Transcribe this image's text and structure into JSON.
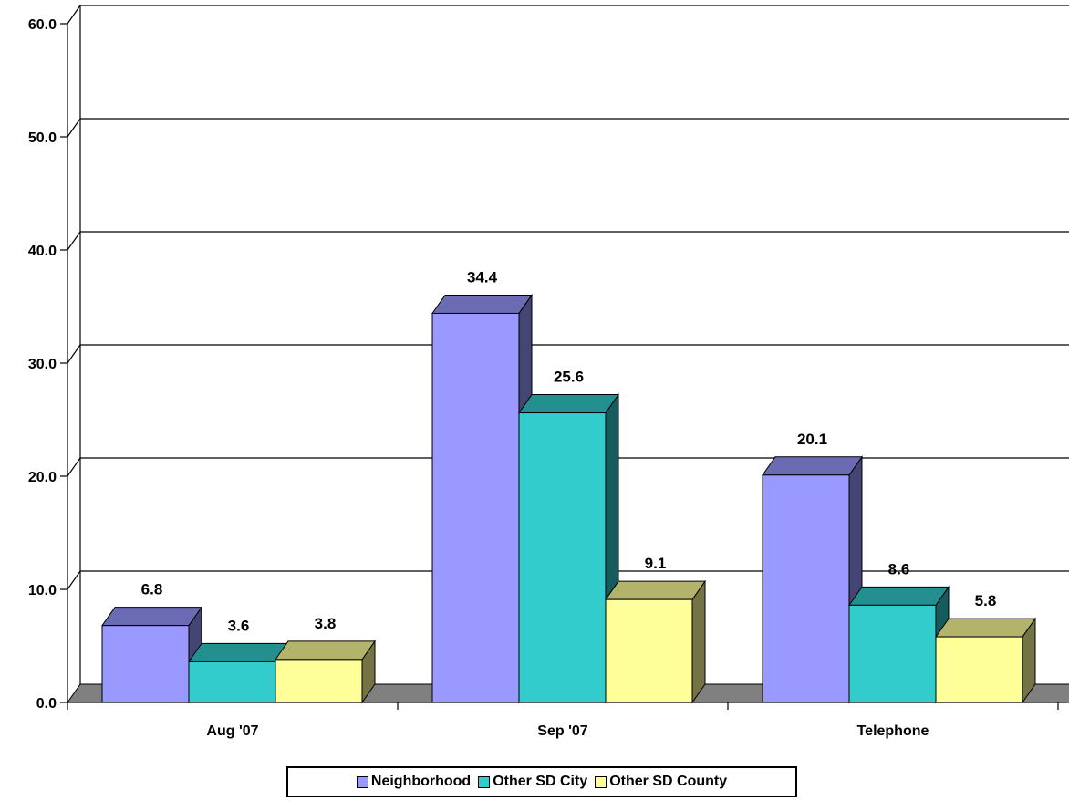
{
  "chart_data": {
    "type": "bar",
    "categories": [
      "Aug '07",
      "Sep '07",
      "Telephone"
    ],
    "series": [
      {
        "name": "Neighborhood",
        "values": [
          6.8,
          34.4,
          20.1
        ],
        "color": "#9999FF"
      },
      {
        "name": "Other SD City",
        "values": [
          3.6,
          25.6,
          8.6
        ],
        "color": "#33CCCC"
      },
      {
        "name": "Other SD County",
        "values": [
          3.8,
          9.1,
          5.8
        ],
        "color": "#FFFF99"
      }
    ],
    "data_labels": [
      [
        "6.8",
        "34.4",
        "20.1"
      ],
      [
        "3.6",
        "25.6",
        "8.6"
      ],
      [
        "3.8",
        "9.1",
        "5.8"
      ]
    ],
    "y_ticks": [
      "0.0",
      "10.0",
      "20.0",
      "30.0",
      "40.0",
      "50.0",
      "60.0"
    ],
    "ylim": [
      0,
      60
    ],
    "grid": true,
    "three_d": true,
    "legend_position": "bottom",
    "floor_color": "#808080"
  }
}
